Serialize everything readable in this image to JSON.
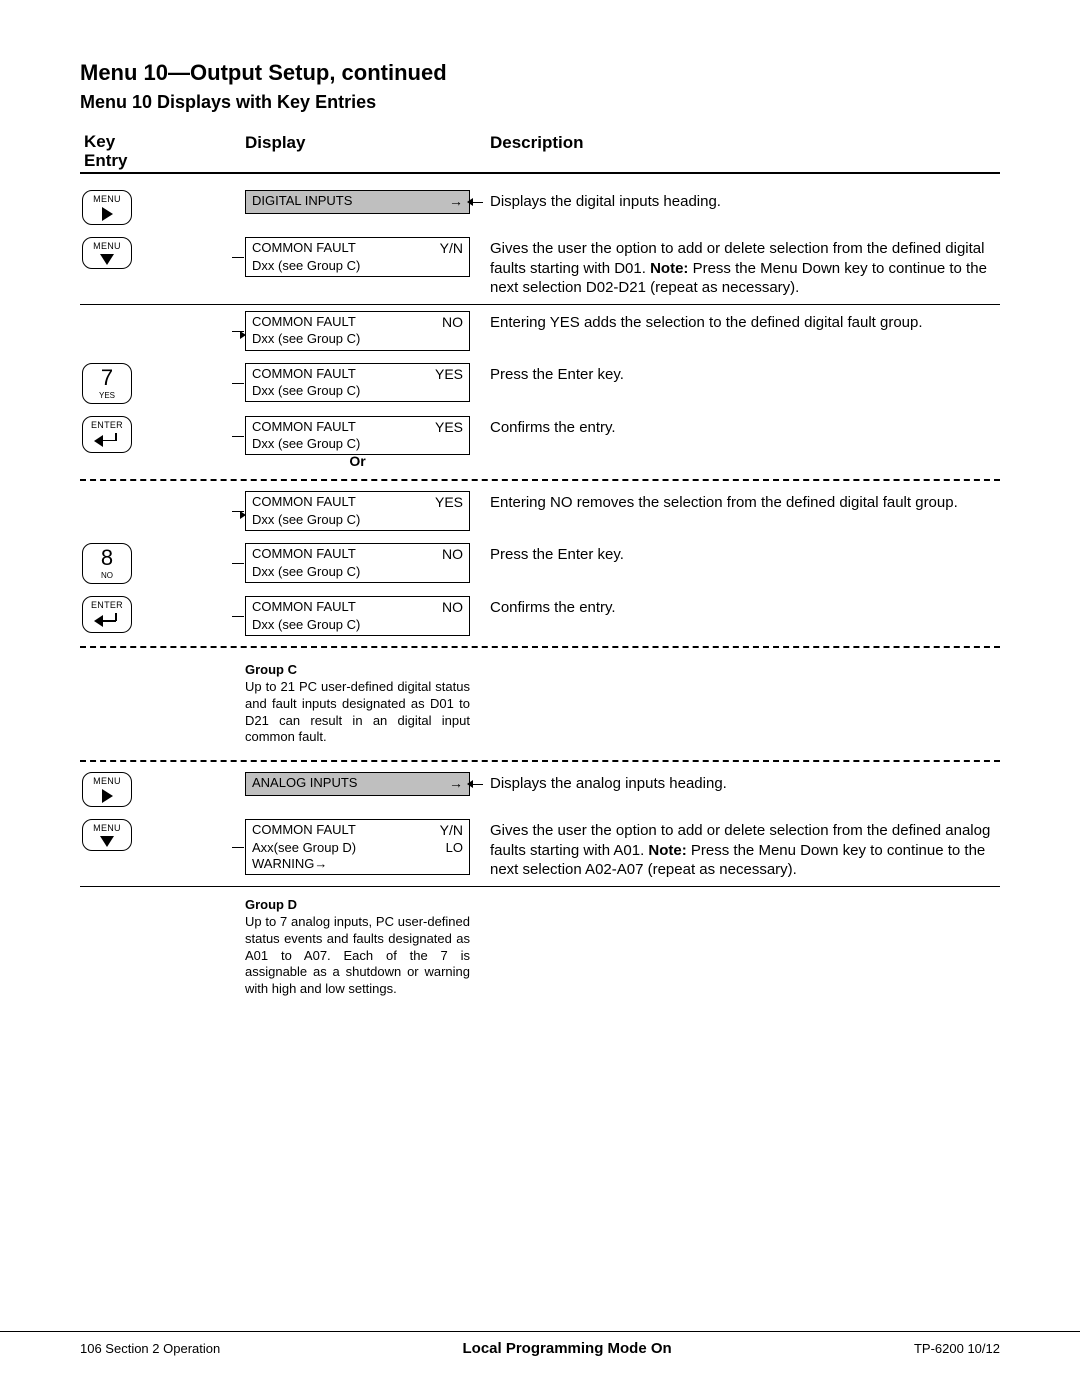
{
  "title": "Menu 10—Output Setup, continued",
  "subtitle": "Menu 10 Displays with Key Entries",
  "headers": {
    "key": "Key Entry",
    "display": "Display",
    "description": "Description"
  },
  "rows": [
    {
      "key": {
        "type": "menu-right"
      },
      "disp": {
        "shaded": true,
        "l1": "DIGITAL INPUTS",
        "r1": "→"
      },
      "desc": "Displays the digital inputs heading.",
      "arrowOut": true
    },
    {
      "key": {
        "type": "menu-down"
      },
      "disp": {
        "l1": "COMMON FAULT",
        "r1": "Y/N",
        "l2": "Dxx (see Group C)"
      },
      "desc": "Gives the user the option to add or delete selection from the defined digital faults starting with D01.  <b>Note:</b> Press the Menu Down key to continue to the next selection D02-D21 (repeat as necessary).",
      "lineIn": true,
      "solidAfter": true
    },
    {
      "disp": {
        "l1": "COMMON FAULT",
        "r1": "NO",
        "l2": "Dxx (see Group C)"
      },
      "desc": "Entering YES adds the selection to the defined digital fault group.",
      "arrowInLeft": true
    },
    {
      "key": {
        "type": "num",
        "num": "7",
        "sub": "YES"
      },
      "disp": {
        "l1": "COMMON FAULT",
        "r1": "YES",
        "l2": "Dxx (see Group C)"
      },
      "desc": "Press the Enter key.",
      "lineIn": true
    },
    {
      "key": {
        "type": "enter"
      },
      "disp": {
        "l1": "COMMON FAULT",
        "r1": "YES",
        "l2": "Dxx (see Group C)",
        "orAfter": true
      },
      "desc": "Confirms the entry.",
      "lineIn": true,
      "dashAfter": true
    },
    {
      "disp": {
        "l1": "COMMON FAULT",
        "r1": "YES",
        "l2": "Dxx (see Group C)"
      },
      "desc": "Entering NO removes the selection from the defined digital fault group.",
      "arrowInLeft": true
    },
    {
      "key": {
        "type": "num",
        "num": "8",
        "sub": "NO"
      },
      "disp": {
        "l1": "COMMON FAULT",
        "r1": "NO",
        "l2": "Dxx (see Group C)"
      },
      "desc": "Press the Enter key.",
      "lineIn": true
    },
    {
      "key": {
        "type": "enter"
      },
      "disp": {
        "l1": "COMMON FAULT",
        "r1": "NO",
        "l2": "Dxx (see Group C)"
      },
      "desc": "Confirms the entry.",
      "lineIn": true,
      "dashAfter": true
    },
    {
      "group": {
        "title": "Group C",
        "text": "Up to 21 PC user-defined digital status and fault inputs designated as D01 to D21 can result in an digital input common fault."
      },
      "dashAfter": true
    },
    {
      "key": {
        "type": "menu-right"
      },
      "disp": {
        "shaded": true,
        "l1": "ANALOG INPUTS",
        "r1": "→"
      },
      "desc": "Displays the analog inputs heading.",
      "arrowOut": true
    },
    {
      "key": {
        "type": "menu-down"
      },
      "disp": {
        "l1": "COMMON FAULT",
        "r1": "Y/N",
        "l2": "Axx(see Group D)",
        "r2": "LO",
        "l3": "WARNING→"
      },
      "desc": "Gives the user the option to add or delete selection from the defined analog faults starting with A01.  <b>Note:</b> Press the Menu Down key to continue to the next selection A02-A07 (repeat as necessary).",
      "lineIn": true,
      "solidAfter": true
    },
    {
      "group": {
        "title": "Group D",
        "text": "Up to 7 analog inputs, PC user-defined status events and faults designated as A01 to A07. Each of the 7 is assignable as a shutdown or warning with high and low settings."
      }
    }
  ],
  "footer": {
    "left": "106  Section 2  Operation",
    "mid": "Local Programming Mode On",
    "right": "TP-6200  10/12"
  },
  "lbl": {
    "menu": "MENU",
    "enter": "ENTER",
    "or": "Or"
  }
}
